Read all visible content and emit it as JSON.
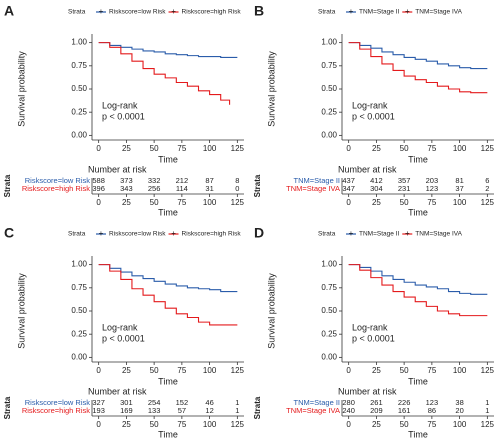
{
  "chart_data": [
    {
      "type": "line",
      "panel": "A",
      "legend_title": "Strata",
      "ylabel": "Survival probability",
      "xlabel": "Time",
      "xlim": [
        -6,
        131
      ],
      "ylim": [
        -0.05,
        1.05
      ],
      "xticks": [
        0,
        25,
        50,
        75,
        100,
        125
      ],
      "yticks": [
        {
          "value": 0,
          "label": "0.00"
        },
        {
          "value": 0.25,
          "label": "0.25"
        },
        {
          "value": 0.5,
          "label": "0.50"
        },
        {
          "value": 0.75,
          "label": "0.75"
        },
        {
          "value": 1,
          "label": "1.00"
        }
      ],
      "annotation": [
        "Log-rank",
        "p < 0.0001"
      ],
      "series": [
        {
          "name": "Riskscore=low Risk",
          "color": "#2a5caa",
          "x": [
            0,
            10,
            20,
            30,
            40,
            50,
            60,
            70,
            80,
            90,
            100,
            110,
            120,
            125
          ],
          "values": [
            1,
            0.97,
            0.95,
            0.93,
            0.91,
            0.9,
            0.88,
            0.87,
            0.86,
            0.85,
            0.85,
            0.84,
            0.84,
            0.84
          ]
        },
        {
          "name": "Riskscore=high Risk",
          "color": "#e41a1c",
          "x": [
            0,
            10,
            20,
            30,
            40,
            50,
            60,
            70,
            80,
            90,
            100,
            110,
            118
          ],
          "values": [
            1,
            0.95,
            0.88,
            0.8,
            0.72,
            0.66,
            0.62,
            0.57,
            0.53,
            0.48,
            0.44,
            0.38,
            0.33
          ]
        }
      ],
      "risk_table": {
        "title": "Number at risk",
        "ylabel": "Strata",
        "xlabel": "Time",
        "rows": [
          [
            588,
            373,
            332,
            212,
            87,
            8
          ],
          [
            396,
            343,
            256,
            114,
            31,
            0
          ]
        ]
      }
    },
    {
      "type": "line",
      "panel": "B",
      "legend_title": "Strata",
      "ylabel": "Survival probability",
      "xlabel": "Time",
      "xlim": [
        -6,
        131
      ],
      "ylim": [
        -0.05,
        1.05
      ],
      "xticks": [
        0,
        25,
        50,
        75,
        100,
        125
      ],
      "yticks": [
        {
          "value": 0,
          "label": "0.00"
        },
        {
          "value": 0.25,
          "label": "0.25"
        },
        {
          "value": 0.5,
          "label": "0.50"
        },
        {
          "value": 0.75,
          "label": "0.75"
        },
        {
          "value": 1,
          "label": "1.00"
        }
      ],
      "annotation": [
        "Log-rank",
        "p < 0.0001"
      ],
      "series": [
        {
          "name": "TNM=Stage II",
          "color": "#2a5caa",
          "x": [
            0,
            10,
            20,
            30,
            40,
            50,
            60,
            70,
            80,
            90,
            100,
            110,
            120,
            125
          ],
          "values": [
            1,
            0.97,
            0.94,
            0.9,
            0.87,
            0.84,
            0.82,
            0.8,
            0.77,
            0.75,
            0.73,
            0.72,
            0.72,
            0.72
          ]
        },
        {
          "name": "TNM=Stage IVA",
          "color": "#e41a1c",
          "x": [
            0,
            10,
            20,
            30,
            40,
            50,
            60,
            70,
            80,
            90,
            100,
            110,
            120,
            125
          ],
          "values": [
            1,
            0.93,
            0.85,
            0.77,
            0.7,
            0.64,
            0.6,
            0.57,
            0.53,
            0.5,
            0.47,
            0.46,
            0.46,
            0.46
          ]
        }
      ],
      "risk_table": {
        "title": "Number at risk",
        "ylabel": "Strata",
        "xlabel": "Time",
        "rows": [
          [
            437,
            412,
            357,
            203,
            81,
            6
          ],
          [
            347,
            304,
            231,
            123,
            37,
            2
          ]
        ]
      }
    },
    {
      "type": "line",
      "panel": "C",
      "legend_title": "Strata",
      "ylabel": "Survival probability",
      "xlabel": "Time",
      "xlim": [
        -6,
        131
      ],
      "ylim": [
        -0.05,
        1.05
      ],
      "xticks": [
        0,
        25,
        50,
        75,
        100,
        125
      ],
      "yticks": [
        {
          "value": 0,
          "label": "0.00"
        },
        {
          "value": 0.25,
          "label": "0.25"
        },
        {
          "value": 0.5,
          "label": "0.50"
        },
        {
          "value": 0.75,
          "label": "0.75"
        },
        {
          "value": 1,
          "label": "1.00"
        }
      ],
      "annotation": [
        "Log-rank",
        "p < 0.0001"
      ],
      "series": [
        {
          "name": "Riskscore=low Risk",
          "color": "#2a5caa",
          "x": [
            0,
            10,
            20,
            30,
            40,
            50,
            60,
            70,
            80,
            90,
            100,
            110,
            120,
            125
          ],
          "values": [
            1,
            0.96,
            0.92,
            0.88,
            0.85,
            0.82,
            0.79,
            0.77,
            0.75,
            0.74,
            0.73,
            0.71,
            0.71,
            0.71
          ]
        },
        {
          "name": "Riskscore=high Risk",
          "color": "#e41a1c",
          "x": [
            0,
            10,
            20,
            30,
            40,
            50,
            60,
            70,
            80,
            90,
            100,
            110,
            125
          ],
          "values": [
            1,
            0.93,
            0.84,
            0.74,
            0.67,
            0.6,
            0.53,
            0.47,
            0.43,
            0.38,
            0.35,
            0.35,
            0.35
          ]
        }
      ],
      "risk_table": {
        "title": "Number at risk",
        "ylabel": "Strata",
        "xlabel": "Time",
        "rows": [
          [
            327,
            301,
            254,
            152,
            46,
            1
          ],
          [
            193,
            169,
            133,
            57,
            12,
            1
          ]
        ]
      }
    },
    {
      "type": "line",
      "panel": "D",
      "legend_title": "Strata",
      "ylabel": "Survival probability",
      "xlabel": "Time",
      "xlim": [
        -6,
        131
      ],
      "ylim": [
        -0.05,
        1.05
      ],
      "xticks": [
        0,
        25,
        50,
        75,
        100,
        125
      ],
      "yticks": [
        {
          "value": 0,
          "label": "0.00"
        },
        {
          "value": 0.25,
          "label": "0.25"
        },
        {
          "value": 0.5,
          "label": "0.50"
        },
        {
          "value": 0.75,
          "label": "0.75"
        },
        {
          "value": 1,
          "label": "1.00"
        }
      ],
      "annotation": [
        "Log-rank",
        "p < 0.0001"
      ],
      "series": [
        {
          "name": "TNM=Stage II",
          "color": "#2a5caa",
          "x": [
            0,
            10,
            20,
            30,
            40,
            50,
            60,
            70,
            80,
            90,
            100,
            110,
            120,
            125
          ],
          "values": [
            1,
            0.97,
            0.93,
            0.88,
            0.84,
            0.81,
            0.78,
            0.76,
            0.74,
            0.71,
            0.69,
            0.68,
            0.68,
            0.68
          ]
        },
        {
          "name": "TNM=Stage IVA",
          "color": "#e41a1c",
          "x": [
            0,
            10,
            20,
            30,
            40,
            50,
            60,
            70,
            80,
            90,
            100,
            110,
            120,
            125
          ],
          "values": [
            1,
            0.94,
            0.86,
            0.78,
            0.71,
            0.65,
            0.6,
            0.55,
            0.5,
            0.47,
            0.45,
            0.45,
            0.45,
            0.45
          ]
        }
      ],
      "risk_table": {
        "title": "Number at risk",
        "ylabel": "Strata",
        "xlabel": "Time",
        "rows": [
          [
            280,
            261,
            226,
            123,
            38,
            1
          ],
          [
            240,
            209,
            161,
            86,
            20,
            1
          ]
        ]
      }
    }
  ]
}
